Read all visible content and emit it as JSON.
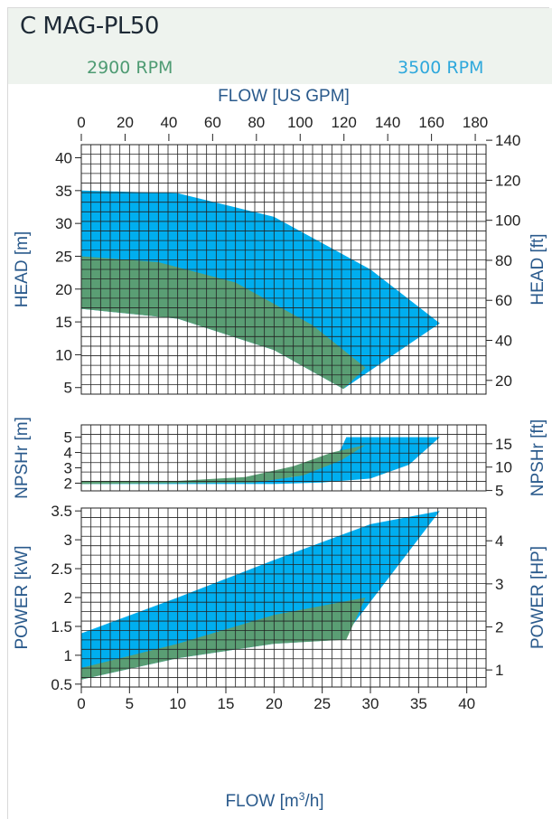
{
  "title": "C MAG-PL50",
  "speeds": {
    "low": "2900 RPM",
    "high": "3500 RPM"
  },
  "colors": {
    "low": "#5a9e74",
    "high": "#00aeef",
    "axis_text": "#2a5a8c",
    "grid": "#222222"
  },
  "chart_data": [
    {
      "type": "area",
      "panel": "head",
      "top_axis_label": "FLOW [US  GPM]",
      "top_axis_ticks": [
        0,
        20,
        40,
        60,
        80,
        100,
        120,
        140,
        160,
        180
      ],
      "ylabel": "HEAD [m]",
      "y2label": "HEAD [ft]",
      "xlim": [
        0,
        42
      ],
      "ylim": [
        4,
        42
      ],
      "yticks": [
        5,
        10,
        15,
        20,
        25,
        30,
        35,
        40
      ],
      "y2ticks": [
        20,
        40,
        60,
        80,
        100,
        120,
        140
      ],
      "series": [
        {
          "name": "3500 RPM",
          "upper": [
            [
              0,
              35
            ],
            [
              10,
              34.6
            ],
            [
              20,
              31
            ],
            [
              30,
              23
            ],
            [
              37.2,
              14.8
            ]
          ],
          "lower": [
            [
              0,
              17
            ],
            [
              10,
              15.5
            ],
            [
              20,
              10.7
            ],
            [
              27.2,
              4.8
            ],
            [
              37.2,
              14.8
            ]
          ]
        },
        {
          "name": "2900 RPM",
          "upper": [
            [
              0,
              25
            ],
            [
              8,
              24.1
            ],
            [
              16,
              21
            ],
            [
              24,
              14.5
            ],
            [
              29.5,
              8
            ]
          ],
          "lower": [
            [
              0,
              17
            ],
            [
              10,
              15.5
            ],
            [
              20,
              10.7
            ],
            [
              27.2,
              4.8
            ],
            [
              29.5,
              8
            ]
          ]
        }
      ]
    },
    {
      "type": "area",
      "panel": "npshr",
      "ylabel": "NPSHr [m]",
      "y2label": "NPSHr [ft]",
      "xlim": [
        0,
        42
      ],
      "ylim": [
        1.5,
        5.8
      ],
      "yticks": [
        2,
        3,
        4,
        5
      ],
      "y2ticks": [
        5,
        10,
        15
      ],
      "series": [
        {
          "name": "3500 RPM",
          "upper": [
            [
              0,
              2.05
            ],
            [
              15,
              2.05
            ],
            [
              22,
              2.4
            ],
            [
              26,
              3.4
            ],
            [
              27,
              4.3
            ],
            [
              27.5,
              5
            ],
            [
              37.2,
              5
            ]
          ],
          "lower": [
            [
              0,
              1.95
            ],
            [
              10,
              1.95
            ],
            [
              20,
              1.95
            ],
            [
              25,
              2.05
            ],
            [
              30,
              2.3
            ],
            [
              34,
              3.2
            ],
            [
              37.2,
              5
            ]
          ]
        },
        {
          "name": "2900 RPM",
          "upper": [
            [
              0,
              2.15
            ],
            [
              10,
              2.15
            ],
            [
              17,
              2.4
            ],
            [
              22,
              3.1
            ],
            [
              26,
              4.0
            ],
            [
              29.5,
              4.5
            ]
          ],
          "lower": [
            [
              0,
              1.95
            ],
            [
              10,
              2.0
            ],
            [
              18,
              2.05
            ],
            [
              23,
              2.5
            ],
            [
              27,
              3.5
            ],
            [
              29.5,
              4.5
            ]
          ]
        }
      ]
    },
    {
      "type": "area",
      "panel": "power",
      "xlabel": "FLOW [m3/h]",
      "xticks": [
        0,
        5,
        10,
        15,
        20,
        25,
        30,
        35,
        40
      ],
      "ylabel": "POWER [kW]",
      "y2label": "POWER [HP]",
      "xlim": [
        0,
        42
      ],
      "ylim": [
        0.45,
        3.55
      ],
      "yticks": [
        0.5,
        1.0,
        1.5,
        2.0,
        2.5,
        3.0,
        3.5
      ],
      "y2ticks": [
        1,
        2,
        3,
        4
      ],
      "series": [
        {
          "name": "3500 RPM",
          "upper": [
            [
              0,
              1.38
            ],
            [
              10,
              2.0
            ],
            [
              20,
              2.65
            ],
            [
              30,
              3.27
            ],
            [
              37.2,
              3.5
            ]
          ],
          "lower": [
            [
              0,
              0.58
            ],
            [
              10,
              0.95
            ],
            [
              20,
              1.2
            ],
            [
              27,
              1.27
            ],
            [
              37.2,
              3.5
            ]
          ]
        },
        {
          "name": "2900 RPM",
          "upper": [
            [
              0,
              0.78
            ],
            [
              10,
              1.2
            ],
            [
              20,
              1.7
            ],
            [
              29.5,
              2.0
            ]
          ],
          "lower": [
            [
              0,
              0.58
            ],
            [
              10,
              0.95
            ],
            [
              20,
              1.2
            ],
            [
              27.5,
              1.27
            ],
            [
              29.5,
              2.0
            ]
          ]
        }
      ]
    }
  ]
}
